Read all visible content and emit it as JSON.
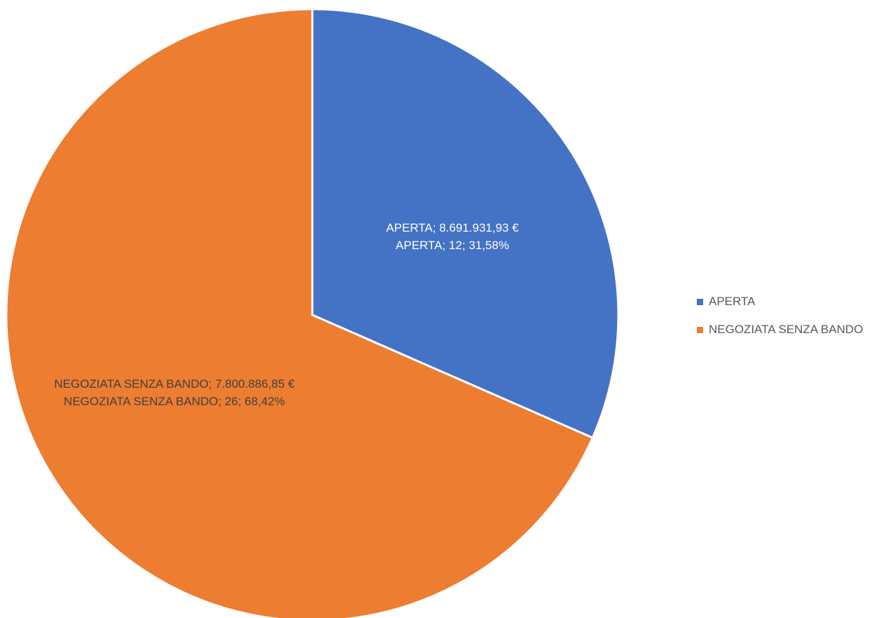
{
  "chart_data": {
    "type": "pie",
    "title": "",
    "slices": [
      {
        "name": "APERTA",
        "value": 12,
        "percent": 31.58,
        "amount": "8.691.931,93 €",
        "color": "#4472C4",
        "label_line1": "APERTA; 8.691.931,93 €",
        "label_line2": "APERTA; 12; 31,58%",
        "label_color": "#ffffff"
      },
      {
        "name": "NEGOZIATA SENZA BANDO",
        "value": 26,
        "percent": 68.42,
        "amount": "7.800.886,85 €",
        "color": "#ED7D31",
        "label_line1": "NEGOZIATA SENZA BANDO;  7.800.886,85 €",
        "label_line2": "NEGOZIATA SENZA BANDO; 26; 68,42%",
        "label_color": "#404040"
      }
    ],
    "legend_position": "right"
  }
}
